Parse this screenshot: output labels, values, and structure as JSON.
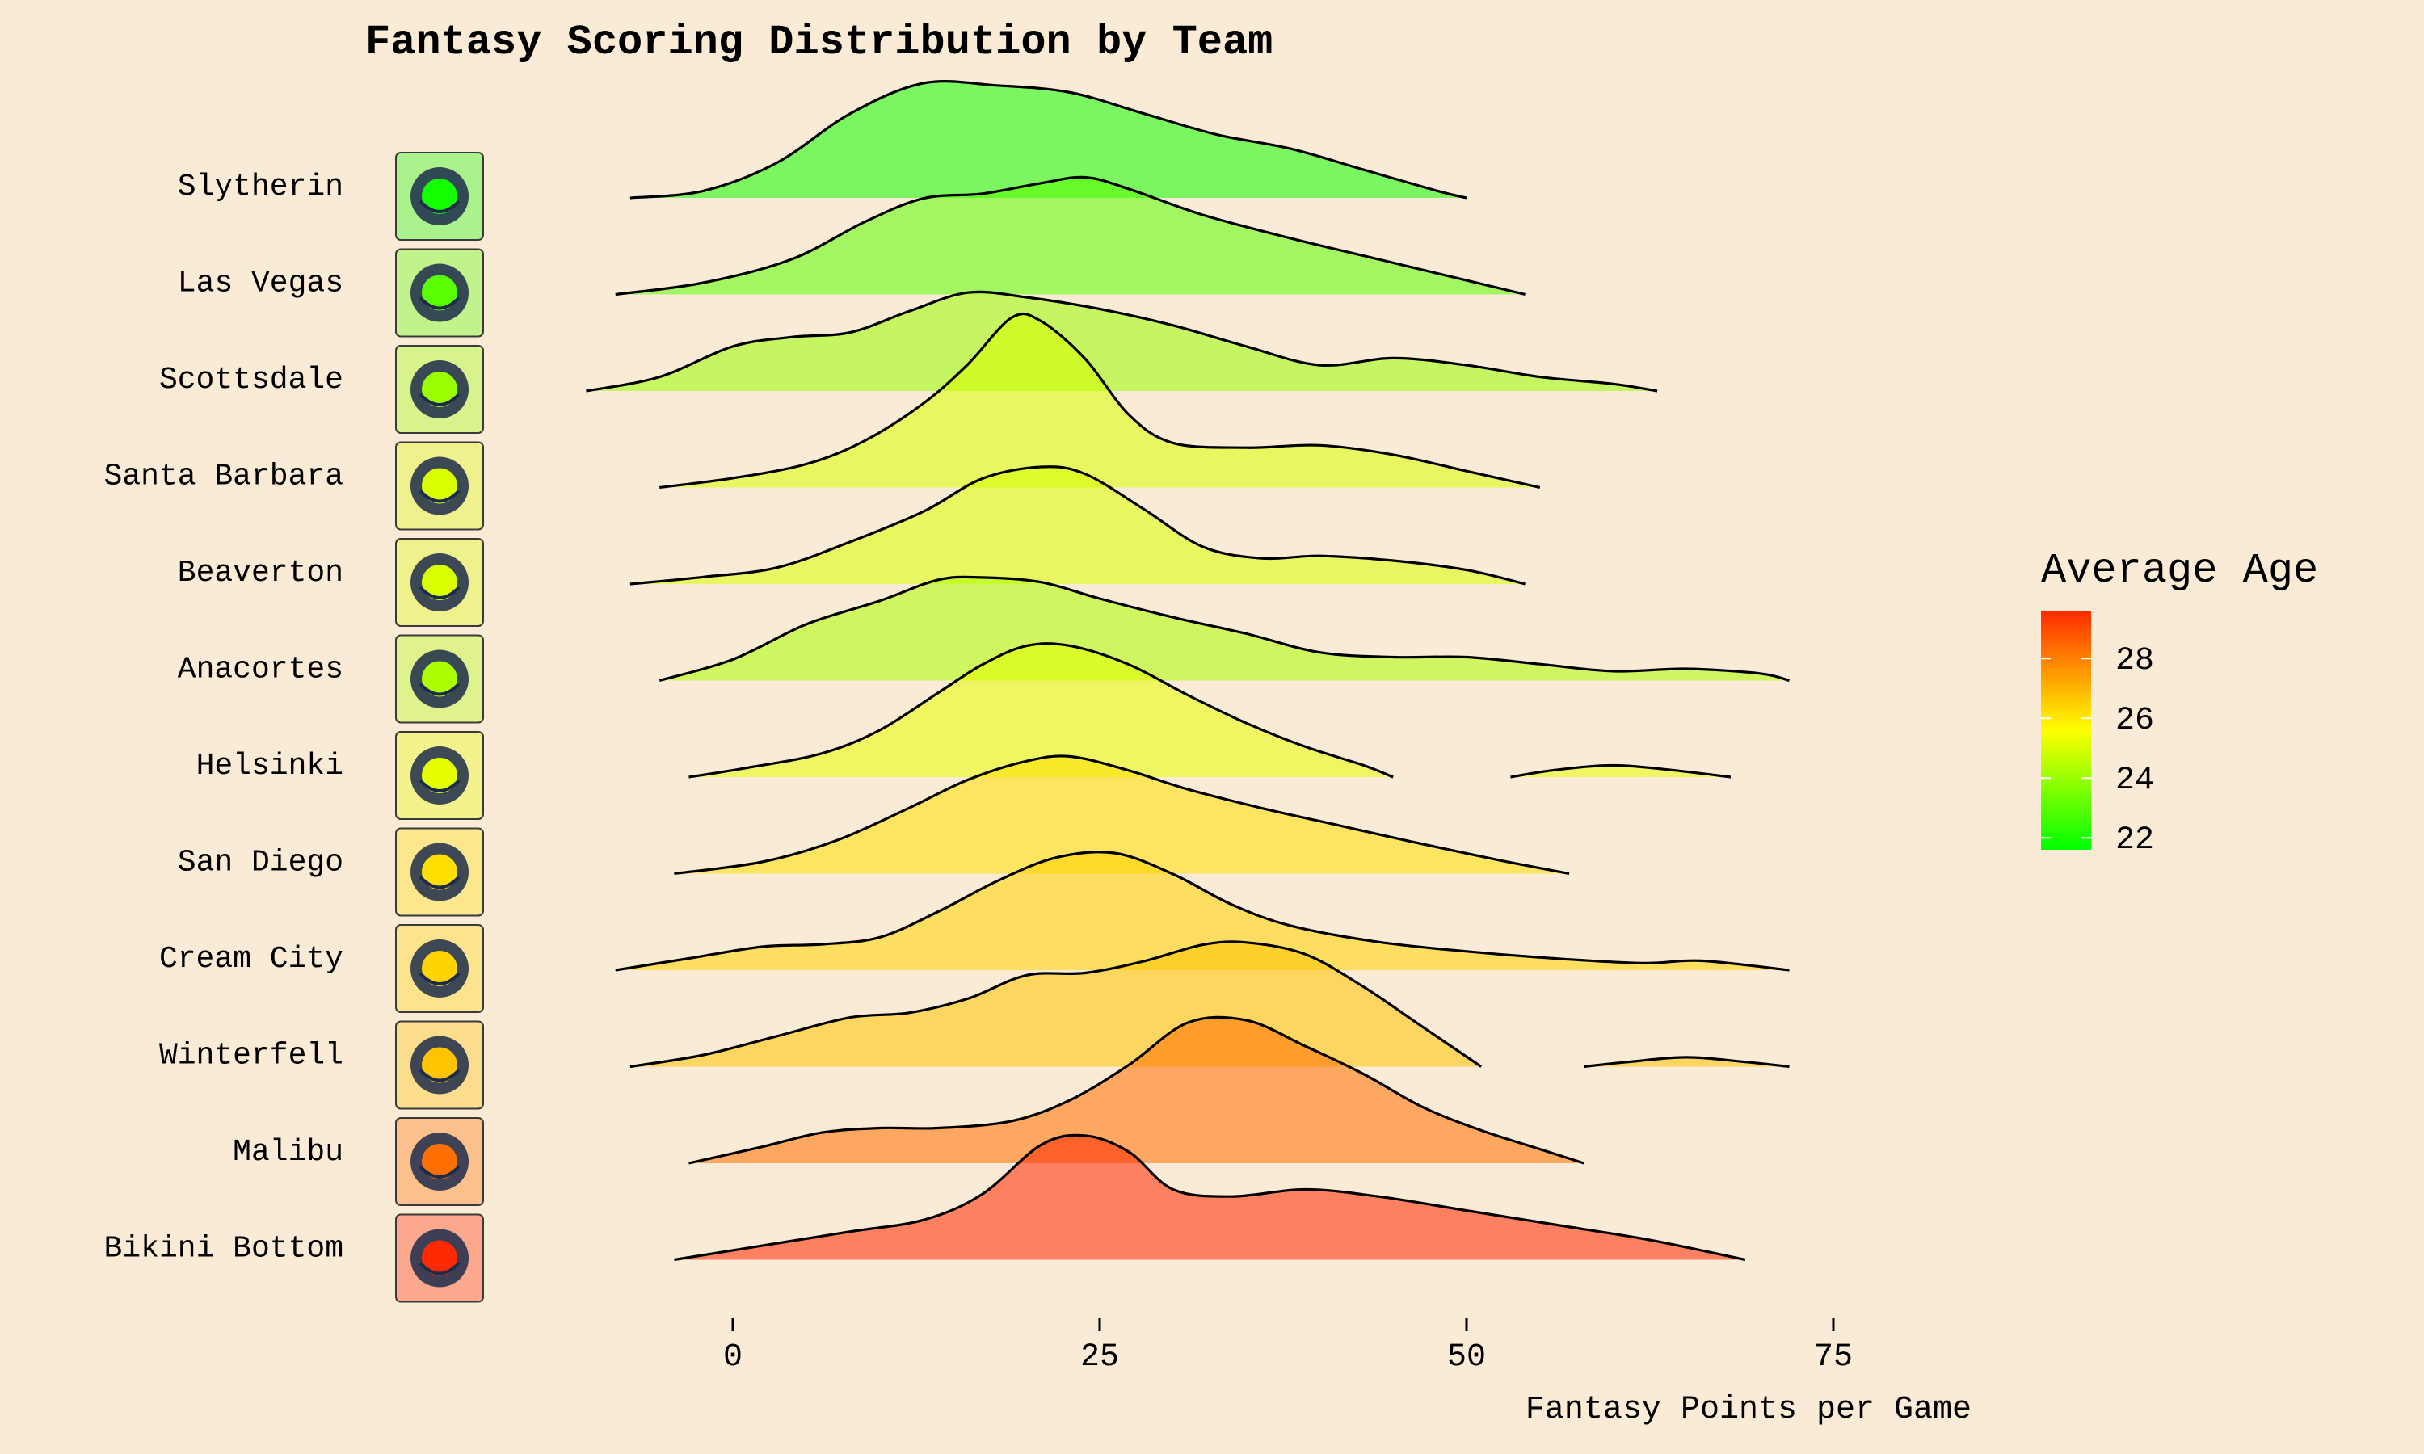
{
  "chart_data": {
    "type": "ridgeline",
    "title": "Fantasy Scoring Distribution by Team",
    "xlabel": "Fantasy Points per Game",
    "ylabel": "",
    "xlim": [
      -11,
      85
    ],
    "x_ticks": [
      0,
      25,
      50,
      75
    ],
    "x_tick_labels": [
      "0",
      "25",
      "50",
      "75"
    ],
    "grid": false,
    "legend": {
      "title": "Average Age",
      "placement": "right",
      "ticks": [
        22,
        24,
        26,
        28
      ],
      "tick_labels": [
        "22",
        "24",
        "26",
        "28"
      ],
      "range": [
        21.6,
        29.6
      ],
      "colors": [
        "#00ff00",
        "#ffff00",
        "#ff2a00"
      ]
    },
    "series": [
      {
        "team": "Slytherin",
        "logo_icon": "cartoon-kid-basketball-icon",
        "average_age": 21.9,
        "x_min": -7,
        "x_max": 50,
        "density": [
          [
            -7,
            0
          ],
          [
            -2,
            0.06
          ],
          [
            3,
            0.3
          ],
          [
            8,
            0.72
          ],
          [
            13,
            0.98
          ],
          [
            18,
            0.96
          ],
          [
            23,
            0.9
          ],
          [
            28,
            0.72
          ],
          [
            33,
            0.54
          ],
          [
            38,
            0.42
          ],
          [
            43,
            0.24
          ],
          [
            48,
            0.06
          ],
          [
            50,
            0
          ]
        ]
      },
      {
        "team": "Las Vegas",
        "logo_icon": "sin-city-scorpions-icon",
        "average_age": 23.0,
        "x_min": -8,
        "x_max": 54,
        "density": [
          [
            -8,
            0
          ],
          [
            -2,
            0.1
          ],
          [
            4,
            0.3
          ],
          [
            9,
            0.62
          ],
          [
            13,
            0.82
          ],
          [
            17,
            0.86
          ],
          [
            21,
            0.95
          ],
          [
            24,
            1
          ],
          [
            27,
            0.9
          ],
          [
            32,
            0.68
          ],
          [
            38,
            0.48
          ],
          [
            44,
            0.3
          ],
          [
            50,
            0.12
          ],
          [
            54,
            0
          ]
        ]
      },
      {
        "team": "Scottsdale",
        "logo_icon": "scottsdale-serpent-icon",
        "average_age": 24.0,
        "x_min": -10,
        "x_max": 63,
        "density": [
          [
            -10,
            0
          ],
          [
            -5,
            0.12
          ],
          [
            0,
            0.38
          ],
          [
            4,
            0.46
          ],
          [
            8,
            0.5
          ],
          [
            12,
            0.68
          ],
          [
            16,
            0.84
          ],
          [
            20,
            0.8
          ],
          [
            25,
            0.7
          ],
          [
            30,
            0.56
          ],
          [
            35,
            0.38
          ],
          [
            40,
            0.22
          ],
          [
            45,
            0.28
          ],
          [
            50,
            0.22
          ],
          [
            55,
            0.12
          ],
          [
            60,
            0.06
          ],
          [
            63,
            0
          ]
        ]
      },
      {
        "team": "Santa Barbara",
        "logo_icon": "shark-basketball-icon",
        "average_age": 25.0,
        "x_min": -5,
        "x_max": 55,
        "density": [
          [
            -5,
            0
          ],
          [
            0,
            0.08
          ],
          [
            5,
            0.2
          ],
          [
            9,
            0.4
          ],
          [
            13,
            0.72
          ],
          [
            16,
            1.05
          ],
          [
            19,
            1.45
          ],
          [
            21,
            1.42
          ],
          [
            24,
            1.1
          ],
          [
            27,
            0.62
          ],
          [
            30,
            0.38
          ],
          [
            35,
            0.34
          ],
          [
            40,
            0.36
          ],
          [
            45,
            0.28
          ],
          [
            50,
            0.14
          ],
          [
            55,
            0
          ]
        ]
      },
      {
        "team": "Beaverton",
        "logo_icon": "bigfoot-icon",
        "average_age": 25.0,
        "x_min": -7,
        "x_max": 54,
        "density": [
          [
            -7,
            0
          ],
          [
            -2,
            0.06
          ],
          [
            3,
            0.14
          ],
          [
            8,
            0.36
          ],
          [
            13,
            0.62
          ],
          [
            17,
            0.9
          ],
          [
            21,
            1.0
          ],
          [
            24,
            0.94
          ],
          [
            28,
            0.64
          ],
          [
            32,
            0.32
          ],
          [
            36,
            0.22
          ],
          [
            40,
            0.24
          ],
          [
            45,
            0.2
          ],
          [
            50,
            0.12
          ],
          [
            54,
            0
          ]
        ]
      },
      {
        "team": "Anacortes",
        "logo_icon": "anacortes-orcas-icon",
        "average_age": 24.3,
        "x_min": -5,
        "x_max": 72,
        "density": [
          [
            -5,
            0
          ],
          [
            0,
            0.18
          ],
          [
            5,
            0.48
          ],
          [
            10,
            0.68
          ],
          [
            14,
            0.86
          ],
          [
            17,
            0.88
          ],
          [
            21,
            0.84
          ],
          [
            25,
            0.7
          ],
          [
            30,
            0.54
          ],
          [
            35,
            0.4
          ],
          [
            40,
            0.24
          ],
          [
            45,
            0.2
          ],
          [
            50,
            0.2
          ],
          [
            55,
            0.14
          ],
          [
            60,
            0.08
          ],
          [
            65,
            0.1
          ],
          [
            70,
            0.06
          ],
          [
            72,
            0
          ]
        ]
      },
      {
        "team": "Helsinki",
        "logo_icon": "helsinki-hounds-icon",
        "average_age": 25.2,
        "x_min": -3,
        "x_max": 68,
        "density": [
          [
            -3,
            0
          ],
          [
            1,
            0.08
          ],
          [
            6,
            0.2
          ],
          [
            10,
            0.4
          ],
          [
            14,
            0.72
          ],
          [
            17,
            0.96
          ],
          [
            20,
            1.12
          ],
          [
            23,
            1.12
          ],
          [
            27,
            0.96
          ],
          [
            31,
            0.7
          ],
          [
            35,
            0.46
          ],
          [
            39,
            0.26
          ],
          [
            43,
            0.1
          ],
          [
            45,
            0
          ],
          [
            53,
            0
          ],
          [
            56,
            0.06
          ],
          [
            60,
            0.1
          ],
          [
            64,
            0.06
          ],
          [
            68,
            0
          ]
        ]
      },
      {
        "team": "San Diego",
        "logo_icon": "san-diego-mascot-icon",
        "average_age": 26.2,
        "x_min": -4,
        "x_max": 57,
        "density": [
          [
            -4,
            0
          ],
          [
            2,
            0.1
          ],
          [
            7,
            0.28
          ],
          [
            12,
            0.56
          ],
          [
            16,
            0.8
          ],
          [
            20,
            0.96
          ],
          [
            23,
            1.0
          ],
          [
            27,
            0.88
          ],
          [
            31,
            0.72
          ],
          [
            36,
            0.56
          ],
          [
            41,
            0.42
          ],
          [
            46,
            0.28
          ],
          [
            52,
            0.12
          ],
          [
            57,
            0
          ]
        ]
      },
      {
        "team": "Cream City",
        "logo_icon": "knight-shield-icon",
        "average_age": 26.4,
        "x_min": -8,
        "x_max": 72,
        "density": [
          [
            -8,
            0
          ],
          [
            -3,
            0.1
          ],
          [
            2,
            0.2
          ],
          [
            6,
            0.22
          ],
          [
            10,
            0.28
          ],
          [
            14,
            0.5
          ],
          [
            18,
            0.76
          ],
          [
            22,
            0.96
          ],
          [
            26,
            1.0
          ],
          [
            30,
            0.82
          ],
          [
            34,
            0.56
          ],
          [
            38,
            0.38
          ],
          [
            44,
            0.24
          ],
          [
            50,
            0.16
          ],
          [
            56,
            0.1
          ],
          [
            62,
            0.06
          ],
          [
            66,
            0.08
          ],
          [
            72,
            0
          ]
        ]
      },
      {
        "team": "Winterfell",
        "logo_icon": "direwolf-icon",
        "average_age": 26.7,
        "x_min": -7,
        "x_max": 72,
        "density": [
          [
            -7,
            0
          ],
          [
            -2,
            0.1
          ],
          [
            3,
            0.26
          ],
          [
            8,
            0.42
          ],
          [
            12,
            0.46
          ],
          [
            16,
            0.58
          ],
          [
            20,
            0.78
          ],
          [
            24,
            0.8
          ],
          [
            28,
            0.9
          ],
          [
            32,
            1.04
          ],
          [
            35,
            1.06
          ],
          [
            39,
            0.96
          ],
          [
            43,
            0.68
          ],
          [
            47,
            0.34
          ],
          [
            51,
            0
          ],
          [
            58,
            0
          ],
          [
            61,
            0.04
          ],
          [
            65,
            0.08
          ],
          [
            69,
            0.04
          ],
          [
            72,
            0
          ]
        ]
      },
      {
        "team": "Malibu",
        "logo_icon": "bull-sunglasses-icon",
        "average_age": 28.3,
        "x_min": -3,
        "x_max": 58,
        "density": [
          [
            -3,
            0
          ],
          [
            2,
            0.14
          ],
          [
            6,
            0.26
          ],
          [
            10,
            0.3
          ],
          [
            14,
            0.3
          ],
          [
            19,
            0.36
          ],
          [
            23,
            0.54
          ],
          [
            27,
            0.84
          ],
          [
            31,
            1.2
          ],
          [
            35,
            1.22
          ],
          [
            39,
            1.0
          ],
          [
            43,
            0.76
          ],
          [
            47,
            0.48
          ],
          [
            51,
            0.28
          ],
          [
            55,
            0.12
          ],
          [
            58,
            0
          ]
        ]
      },
      {
        "team": "Bikini Bottom",
        "logo_icon": "bikini-bottom-bb-icon",
        "average_age": 29.6,
        "x_min": -4,
        "x_max": 69,
        "density": [
          [
            -4,
            0
          ],
          [
            2,
            0.12
          ],
          [
            8,
            0.24
          ],
          [
            13,
            0.34
          ],
          [
            17,
            0.56
          ],
          [
            21,
            0.98
          ],
          [
            24,
            1.06
          ],
          [
            27,
            0.92
          ],
          [
            30,
            0.6
          ],
          [
            34,
            0.54
          ],
          [
            39,
            0.6
          ],
          [
            44,
            0.54
          ],
          [
            50,
            0.42
          ],
          [
            56,
            0.3
          ],
          [
            62,
            0.18
          ],
          [
            66,
            0.08
          ],
          [
            69,
            0
          ]
        ]
      }
    ]
  }
}
